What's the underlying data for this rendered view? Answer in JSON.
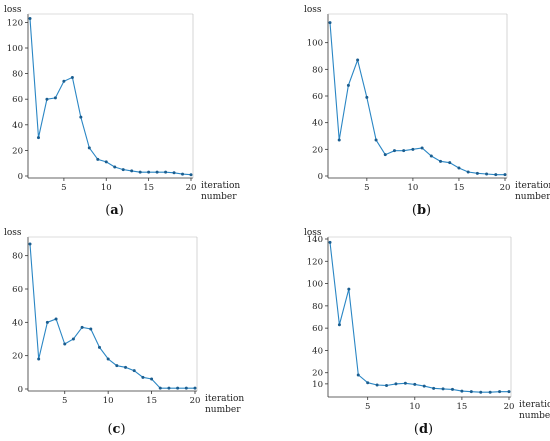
{
  "chart_data": [
    {
      "type": "line",
      "caption_letter": "a",
      "ylabel": "loss",
      "xlabel_line1": "iteration",
      "xlabel_line2": "number",
      "xlim": [
        1,
        20
      ],
      "ylim": [
        0,
        125
      ],
      "x_ticks": [
        5,
        10,
        15,
        20
      ],
      "y_ticks": [
        0,
        20,
        40,
        60,
        80,
        100,
        120
      ],
      "x": [
        1,
        2,
        3,
        4,
        5,
        6,
        7,
        8,
        9,
        10,
        11,
        12,
        13,
        14,
        15,
        16,
        17,
        18,
        19,
        20
      ],
      "values": [
        123,
        30,
        60,
        61,
        74,
        77,
        46,
        22,
        13,
        11,
        7,
        5,
        4,
        3,
        3,
        3,
        3,
        2.5,
        1.5,
        1
      ],
      "color": "#2a86c4"
    },
    {
      "type": "line",
      "caption_letter": "b",
      "ylabel": "loss",
      "xlabel_line1": "iteration",
      "xlabel_line2": "number",
      "xlim": [
        1,
        20
      ],
      "ylim": [
        0,
        120
      ],
      "x_ticks": [
        5,
        10,
        15,
        20
      ],
      "y_ticks": [
        0,
        20,
        40,
        60,
        80,
        100
      ],
      "x": [
        1,
        2,
        3,
        4,
        5,
        6,
        7,
        8,
        9,
        10,
        11,
        12,
        13,
        14,
        15,
        16,
        17,
        18,
        19,
        20
      ],
      "values": [
        115,
        27,
        68,
        87,
        59,
        27,
        16,
        19,
        19,
        20,
        21,
        15,
        11,
        10,
        6,
        3,
        2,
        1.5,
        1,
        1
      ],
      "color": "#2a86c4"
    },
    {
      "type": "line",
      "caption_letter": "c",
      "ylabel": "loss",
      "xlabel_line1": "iteration",
      "xlabel_line2": "number",
      "xlim": [
        1,
        20
      ],
      "ylim": [
        0,
        90
      ],
      "x_ticks": [
        5,
        10,
        15,
        20
      ],
      "y_ticks": [
        0,
        20,
        40,
        60,
        80
      ],
      "x": [
        1,
        2,
        3,
        4,
        5,
        6,
        7,
        8,
        9,
        10,
        11,
        12,
        13,
        14,
        15,
        16,
        17,
        18,
        19,
        20
      ],
      "values": [
        87,
        18,
        40,
        42,
        27,
        30,
        37,
        36,
        25,
        18,
        14,
        13,
        11,
        7,
        6,
        0.5,
        0.5,
        0.5,
        0.5,
        0.5
      ],
      "color": "#2a86c4"
    },
    {
      "type": "line",
      "caption_letter": "d",
      "ylabel": "loss",
      "xlabel_line1": "iteration",
      "xlabel_line2": "number",
      "xlim": [
        1,
        20
      ],
      "ylim": [
        0,
        140
      ],
      "x_ticks": [
        5,
        10,
        15,
        20
      ],
      "y_ticks": [
        10,
        20,
        40,
        60,
        80,
        100,
        120,
        140
      ],
      "x": [
        1,
        2,
        3,
        4,
        5,
        6,
        7,
        8,
        9,
        10,
        11,
        12,
        13,
        14,
        15,
        16,
        17,
        18,
        19,
        20
      ],
      "values": [
        137,
        63,
        95,
        18,
        11,
        9,
        8.5,
        10,
        10.5,
        9.5,
        8,
        6,
        5.5,
        5,
        3.5,
        3,
        2.5,
        2.5,
        3,
        3
      ],
      "color": "#2a86c4"
    }
  ]
}
